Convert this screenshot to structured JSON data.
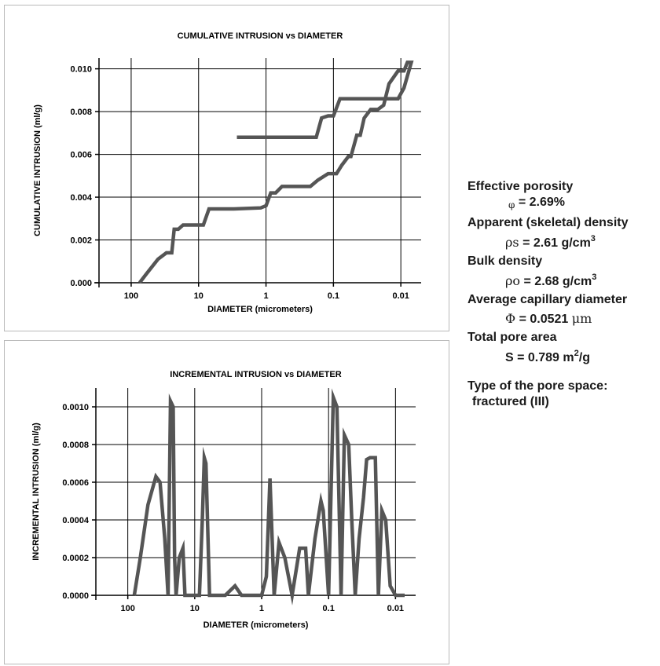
{
  "colors": {
    "line": "#555555",
    "grid": "#000000",
    "axis": "#000000",
    "panel_border": "#b9b9b9"
  },
  "chart_data": [
    {
      "type": "line",
      "title": "CUMULATIVE INTRUSION  vs  DIAMETER",
      "xlabel": "DIAMETER (micrometers)",
      "ylabel": "CUMULATIVE INTRUSION (ml/g)",
      "x_scale": "log",
      "x_reversed": true,
      "xlim": [
        300,
        0.005
      ],
      "ylim": [
        0,
        0.0105
      ],
      "x_ticks": [
        100,
        10,
        1,
        0.1,
        0.01
      ],
      "x_tick_labels": [
        "100",
        "10",
        "1",
        "0.1",
        "0.01"
      ],
      "y_ticks": [
        0,
        0.002,
        0.004,
        0.006,
        0.008,
        0.01
      ],
      "y_tick_labels": [
        "0.000",
        "0.002",
        "0.004",
        "0.006",
        "0.008",
        "0.010"
      ],
      "grid": true,
      "series": [
        {
          "x": [
            75,
            60,
            40,
            30,
            25,
            23,
            20,
            17,
            13,
            8.5,
            7.0,
            5.0,
            3.0,
            1.2,
            1.0,
            0.85,
            0.72,
            0.58,
            0.22,
            0.17,
            0.12,
            0.09,
            0.075,
            0.06,
            0.055,
            0.045,
            0.04,
            0.035,
            0.028,
            0.022,
            0.018,
            0.015,
            0.011,
            0.009,
            0.008,
            0.007,
            0.009,
            0.011,
            0.02,
            0.03,
            0.04,
            0.06,
            0.08,
            0.1,
            0.12,
            0.15,
            0.18,
            2.7
          ],
          "y": [
            0.0,
            0.0004,
            0.0011,
            0.0014,
            0.0014,
            0.0025,
            0.0025,
            0.0027,
            0.0027,
            0.0027,
            0.00345,
            0.00345,
            0.00345,
            0.0035,
            0.0036,
            0.0042,
            0.0042,
            0.0045,
            0.0045,
            0.0048,
            0.0051,
            0.0051,
            0.0055,
            0.0059,
            0.0059,
            0.0069,
            0.0069,
            0.0077,
            0.0081,
            0.0081,
            0.0083,
            0.0093,
            0.0099,
            0.0099,
            0.0103,
            0.0103,
            0.0091,
            0.0086,
            0.0086,
            0.0086,
            0.0086,
            0.0086,
            0.0086,
            0.0078,
            0.0078,
            0.0077,
            0.0068,
            0.0068
          ]
        }
      ]
    },
    {
      "type": "line",
      "title": "INCREMENTAL INTRUSION  vs  DIAMETER",
      "xlabel": "DIAMETER (micrometers)",
      "ylabel": "INCREMENTAL INTRUSION (ml/g)",
      "x_scale": "log",
      "x_reversed": true,
      "xlim": [
        300,
        0.005
      ],
      "ylim": [
        0,
        0.0011
      ],
      "x_ticks": [
        100,
        10,
        1,
        0.1,
        0.01
      ],
      "x_tick_labels": [
        "100",
        "10",
        "1",
        "0.1",
        "0.01"
      ],
      "y_ticks": [
        0,
        0.0002,
        0.0004,
        0.0006,
        0.0008,
        0.001
      ],
      "y_tick_labels": [
        "0.0000",
        "0.0002",
        "0.0004",
        "0.0006",
        "0.0008",
        "0.0010"
      ],
      "grid": true,
      "series": [
        {
          "x": [
            80,
            65,
            50,
            38,
            33,
            28,
            25,
            23,
            21,
            20,
            19,
            17,
            15,
            14,
            12,
            8.5,
            7.7,
            7.2,
            6.8,
            6.0,
            3.5,
            2.5,
            2.0,
            1.0,
            0.85,
            0.75,
            0.65,
            0.55,
            0.45,
            0.35,
            0.27,
            0.22,
            0.2,
            0.16,
            0.13,
            0.12,
            0.1,
            0.085,
            0.075,
            0.065,
            0.058,
            0.05,
            0.045,
            0.04,
            0.035,
            0.03,
            0.027,
            0.024,
            0.02,
            0.018,
            0.016,
            0.014,
            0.012,
            0.01,
            0.009,
            0.008,
            0.0073
          ],
          "y": [
            0.0,
            0.0002,
            0.00048,
            0.00063,
            0.0006,
            0.0003,
            0.0,
            0.00103,
            0.001,
            0.0002,
            0.0,
            0.0002,
            0.00025,
            0.0,
            0.0,
            0.0,
            0.0004,
            0.00073,
            0.0007,
            0.0,
            0.0,
            5e-05,
            0.0,
            0.0,
            0.0001,
            0.00062,
            0.0,
            0.00028,
            0.0002,
            0.0,
            0.00025,
            0.00025,
            0.0,
            0.0003,
            0.0005,
            0.00045,
            0.0,
            0.00105,
            0.001,
            0.0,
            0.00085,
            0.0008,
            0.0004,
            0.0,
            0.0003,
            0.00052,
            0.00072,
            0.00073,
            0.00073,
            0.0,
            0.00045,
            0.0004,
            5e-05,
            0.0,
            0.0,
            0.0,
            0.0
          ]
        }
      ]
    }
  ],
  "info": {
    "effective_porosity_label": "Effective porosity",
    "effective_porosity_symbol": "φ",
    "effective_porosity_value": "= 2.69%",
    "skeletal_density_label": "Apparent (skeletal) density",
    "skeletal_density_symbol": "ρs",
    "skeletal_density_value": "= 2.61 g/cm",
    "skeletal_density_sup": "3",
    "bulk_density_label": "Bulk density",
    "bulk_density_symbol": "ρo",
    "bulk_density_value": "= 2.68 g/cm",
    "bulk_density_sup": "3",
    "capillary_diameter_label": "Average capillary diameter",
    "capillary_diameter_symbol": "Φ",
    "capillary_diameter_value": "= 0.0521",
    "capillary_diameter_unit": "μm",
    "pore_area_label": "Total pore area",
    "pore_area_value": "S = 0.789 m",
    "pore_area_sup": "2",
    "pore_area_unit": "/g",
    "pore_type_label": "Type of the pore space:",
    "pore_type_value": "fractured (III)"
  }
}
